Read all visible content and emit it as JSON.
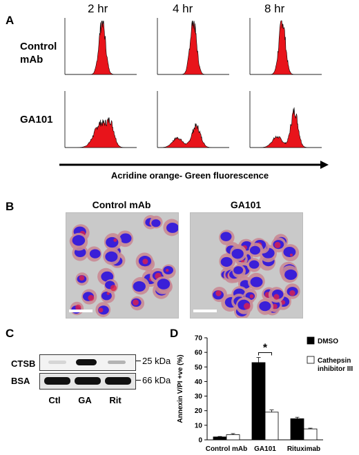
{
  "panels": {
    "a": {
      "letter": "A",
      "timepoints": [
        "2 hr",
        "4 hr",
        "8 hr"
      ],
      "rows": [
        "Control\nmAb",
        "GA101"
      ],
      "x_axis_caption": "Acridine orange- Green fluorescence",
      "histogram_color": "#e8141b"
    },
    "b": {
      "letter": "B",
      "images": [
        "Control mAb",
        "GA101"
      ]
    },
    "c": {
      "letter": "C",
      "rows": [
        "CTSB",
        "BSA"
      ],
      "sizes": [
        "25 kDa",
        "66 kDa"
      ],
      "lanes": [
        "Ctl",
        "GA",
        "Rit"
      ]
    },
    "d": {
      "letter": "D"
    }
  },
  "chart_data": {
    "type": "bar",
    "categories": [
      "Control mAb",
      "GA101",
      "Rituximab"
    ],
    "ylabel": "Annexin V/PI +ve (%)",
    "ylim": [
      0,
      70
    ],
    "yticks": [
      0,
      10,
      20,
      30,
      40,
      50,
      60,
      70
    ],
    "series": [
      {
        "name": "DMSO",
        "values": [
          2,
          53,
          14.5
        ],
        "errors": [
          0.3,
          3.5,
          1
        ],
        "color": "#000000"
      },
      {
        "name": "Cathepsin inhibitor III",
        "values": [
          3.5,
          19,
          7.5
        ],
        "errors": [
          0.8,
          1.5,
          0.5
        ],
        "color": "#ffffff"
      }
    ],
    "legend_position": "top-right",
    "significance": "*",
    "grid": false
  }
}
